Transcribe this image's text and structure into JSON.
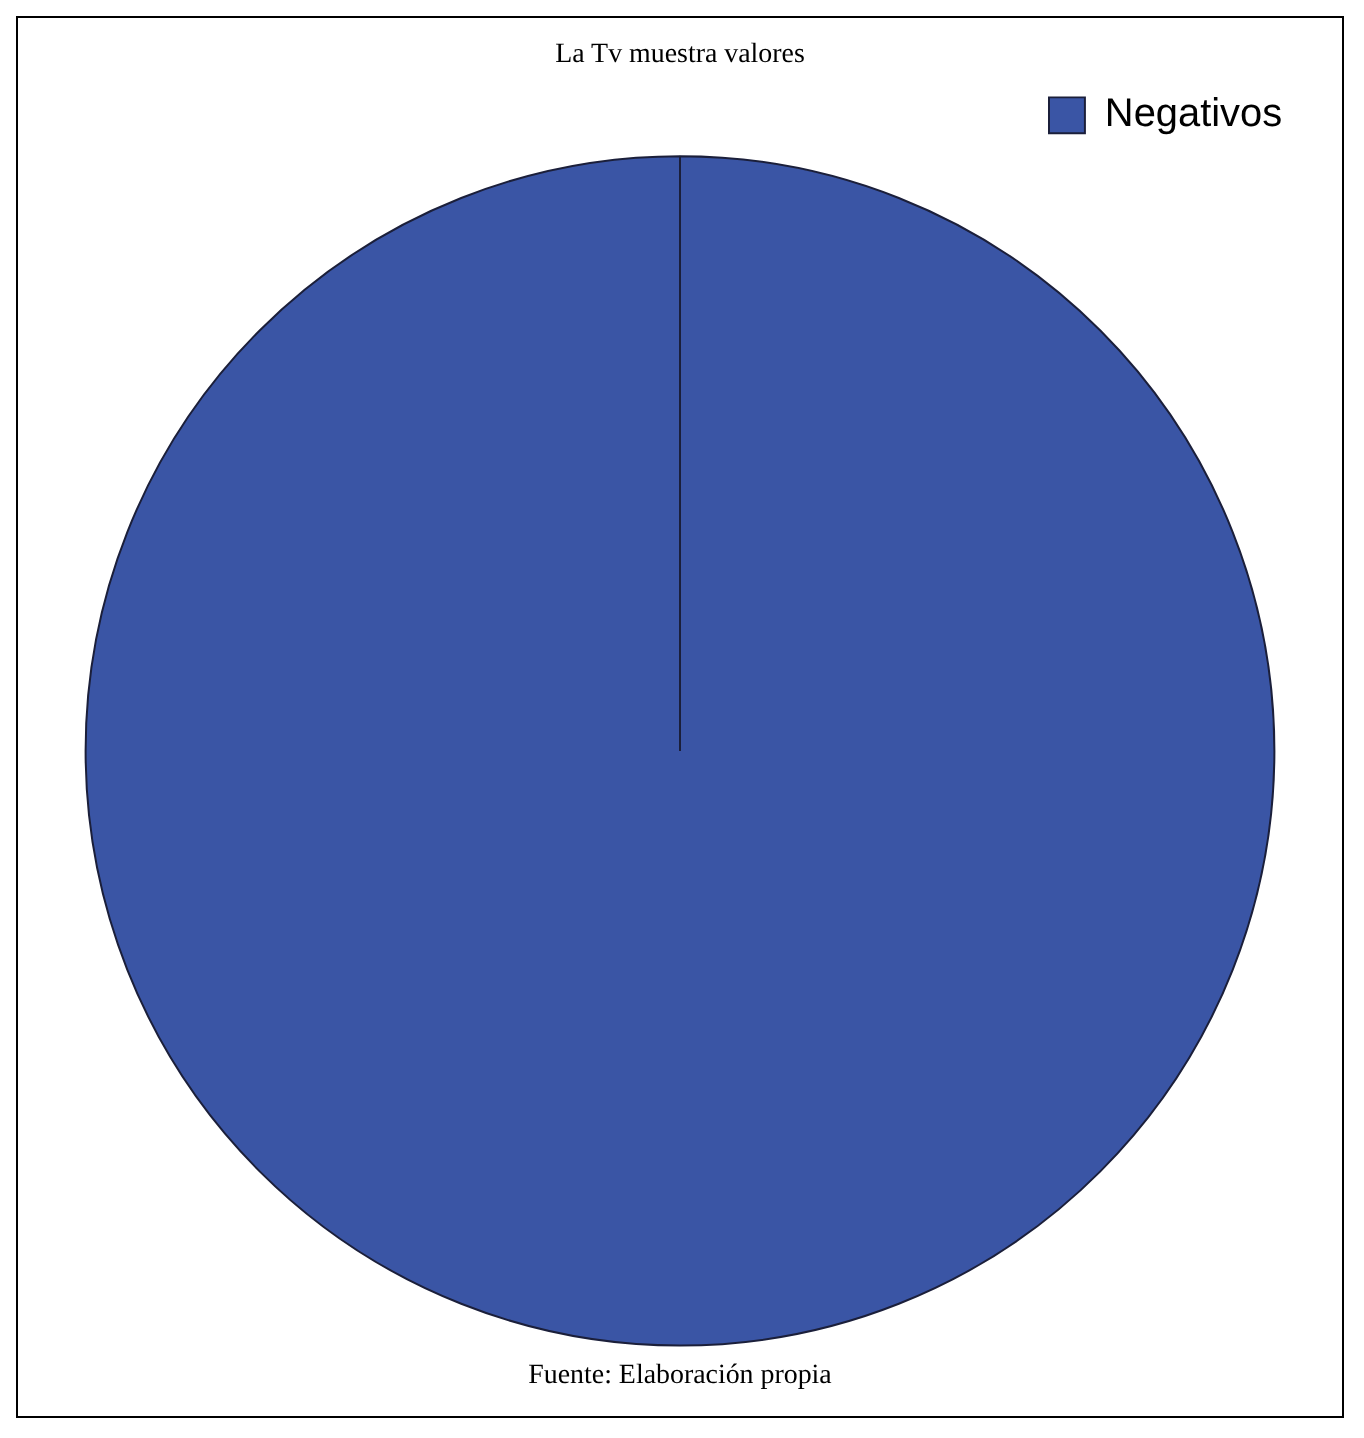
{
  "chart_data": {
    "type": "pie",
    "title": "La Tv muestra valores",
    "categories": [
      "Negativos"
    ],
    "values": [
      100
    ],
    "colors": [
      "#3a55a5"
    ],
    "legend": "top right",
    "annotations": [
      "Fuente: Elaboración propia"
    ]
  }
}
